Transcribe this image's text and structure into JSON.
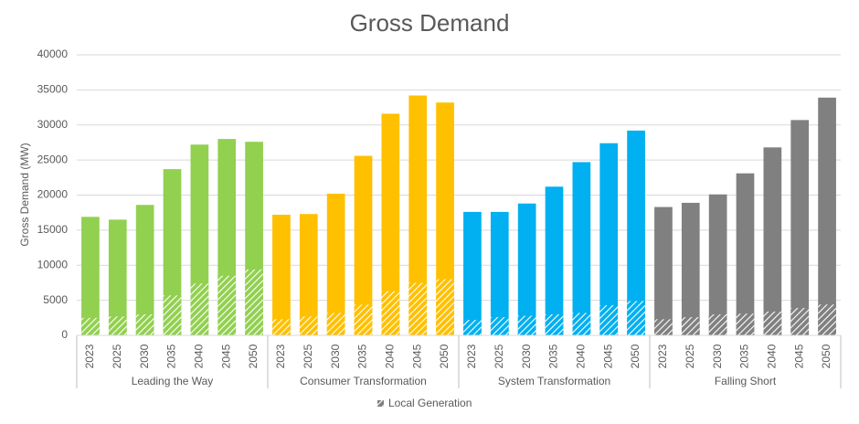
{
  "chart_data": {
    "type": "bar",
    "title": "Gross Demand",
    "y_label": "Gross Demand (MW)",
    "categories": [
      "2023",
      "2025",
      "2030",
      "2035",
      "2040",
      "2045",
      "2050"
    ],
    "groups": [
      {
        "name": "Leading the Way",
        "color": "#92d050",
        "values": [
          16900,
          16500,
          18600,
          23700,
          27200,
          28000,
          27600
        ],
        "local_values": [
          2500,
          2700,
          3000,
          5700,
          7400,
          8500,
          9400
        ]
      },
      {
        "name": "Consumer Transformation",
        "color": "#ffc000",
        "values": [
          17200,
          17300,
          20200,
          25600,
          31600,
          34200,
          33200
        ],
        "local_values": [
          2300,
          2700,
          3200,
          4400,
          6300,
          7500,
          8000
        ]
      },
      {
        "name": "System Transformation",
        "color": "#00b0f0",
        "values": [
          17600,
          17600,
          18800,
          21200,
          24700,
          27400,
          29200
        ],
        "local_values": [
          2200,
          2600,
          2800,
          3000,
          3200,
          4300,
          4900
        ]
      },
      {
        "name": "Falling Short",
        "color": "#808080",
        "values": [
          18300,
          18900,
          20100,
          23100,
          26800,
          30700,
          33900
        ],
        "local_values": [
          2300,
          2600,
          3000,
          3100,
          3400,
          3900,
          4400
        ]
      }
    ],
    "overlay_name": "Local Generation",
    "overlay_color": "#808080",
    "ylim": [
      0,
      40000
    ],
    "yticks": [
      0,
      5000,
      10000,
      15000,
      20000,
      25000,
      30000,
      35000,
      40000
    ],
    "grid": true
  }
}
